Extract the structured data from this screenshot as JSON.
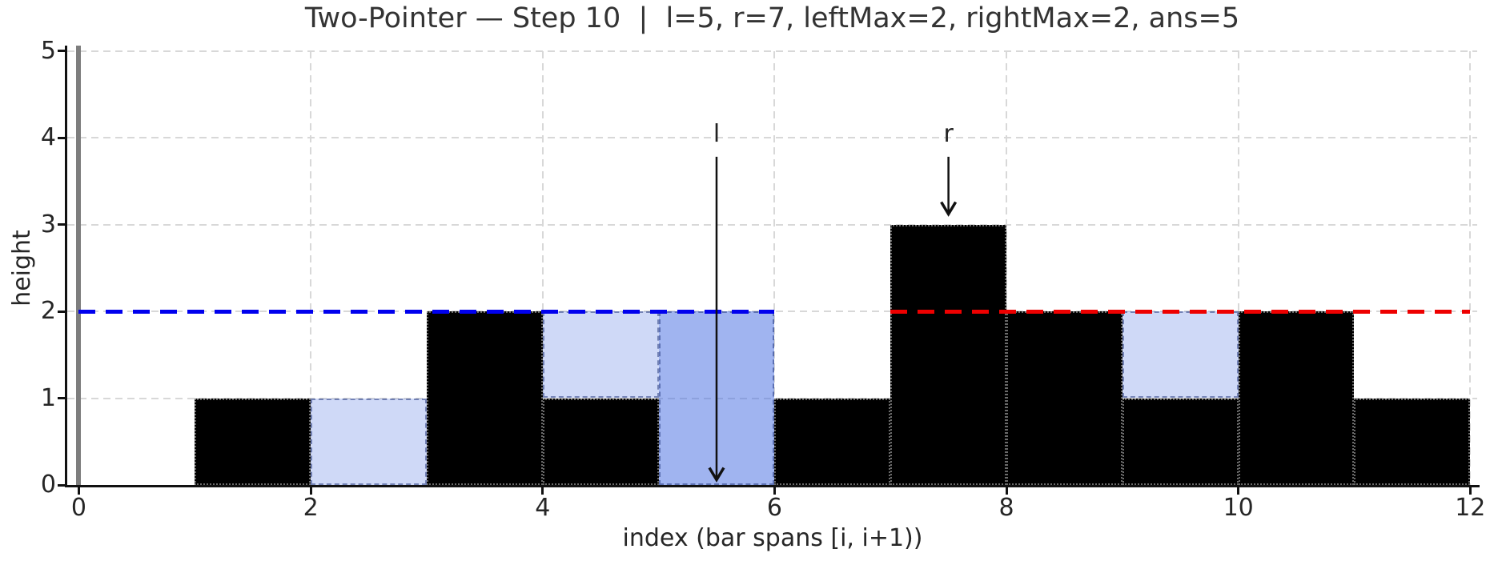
{
  "chart_data": {
    "type": "bar",
    "title": "Two-Pointer — Step 10  |  l=5, r=7, leftMax=2, rightMax=2, ans=5",
    "xlabel": "index (bar spans [i, i+1))",
    "ylabel": "height",
    "state": {
      "step": 10,
      "l": 5,
      "r": 7,
      "leftMax": 2,
      "rightMax": 2,
      "ans": 5
    },
    "heights": [
      0,
      1,
      0,
      2,
      1,
      0,
      1,
      3,
      2,
      1,
      2,
      1
    ],
    "water_cells": [
      {
        "index": 2,
        "from": 0,
        "to": 1,
        "highlight": false
      },
      {
        "index": 4,
        "from": 1,
        "to": 2,
        "highlight": false
      },
      {
        "index": 5,
        "from": 0,
        "to": 2,
        "highlight": true
      },
      {
        "index": 9,
        "from": 1,
        "to": 2,
        "highlight": false
      }
    ],
    "left_max_line": {
      "y": 2,
      "x_start": 0,
      "x_end": 6,
      "color": "#0000ee"
    },
    "right_max_line": {
      "y": 2,
      "x_start": 7,
      "x_end": 12,
      "color": "#ee0000"
    },
    "wall_line_x": 0,
    "pointers": [
      {
        "label": "l",
        "x": 5.5,
        "arrow_from_y": 3.78,
        "arrow_tip_y": 0.06
      },
      {
        "label": "r",
        "x": 7.5,
        "arrow_from_y": 3.78,
        "arrow_tip_y": 3.12
      }
    ],
    "x_ticks": [
      0,
      2,
      4,
      6,
      8,
      10,
      12
    ],
    "y_ticks": [
      0,
      1,
      2,
      3,
      4,
      5
    ],
    "xlim": [
      -0.1,
      12.06
    ],
    "ylim": [
      0,
      5.06
    ],
    "grid": true,
    "legend": null,
    "colors": {
      "bar": "#000000",
      "water": "rgba(65,105,225,0.25)",
      "water_highlight": "rgba(65,105,225,0.5)",
      "left_max": "#0000ee",
      "right_max": "#ee0000",
      "wall": "#7e7e7e",
      "grid": "#d8d8d8",
      "pointer": "#111111"
    }
  }
}
